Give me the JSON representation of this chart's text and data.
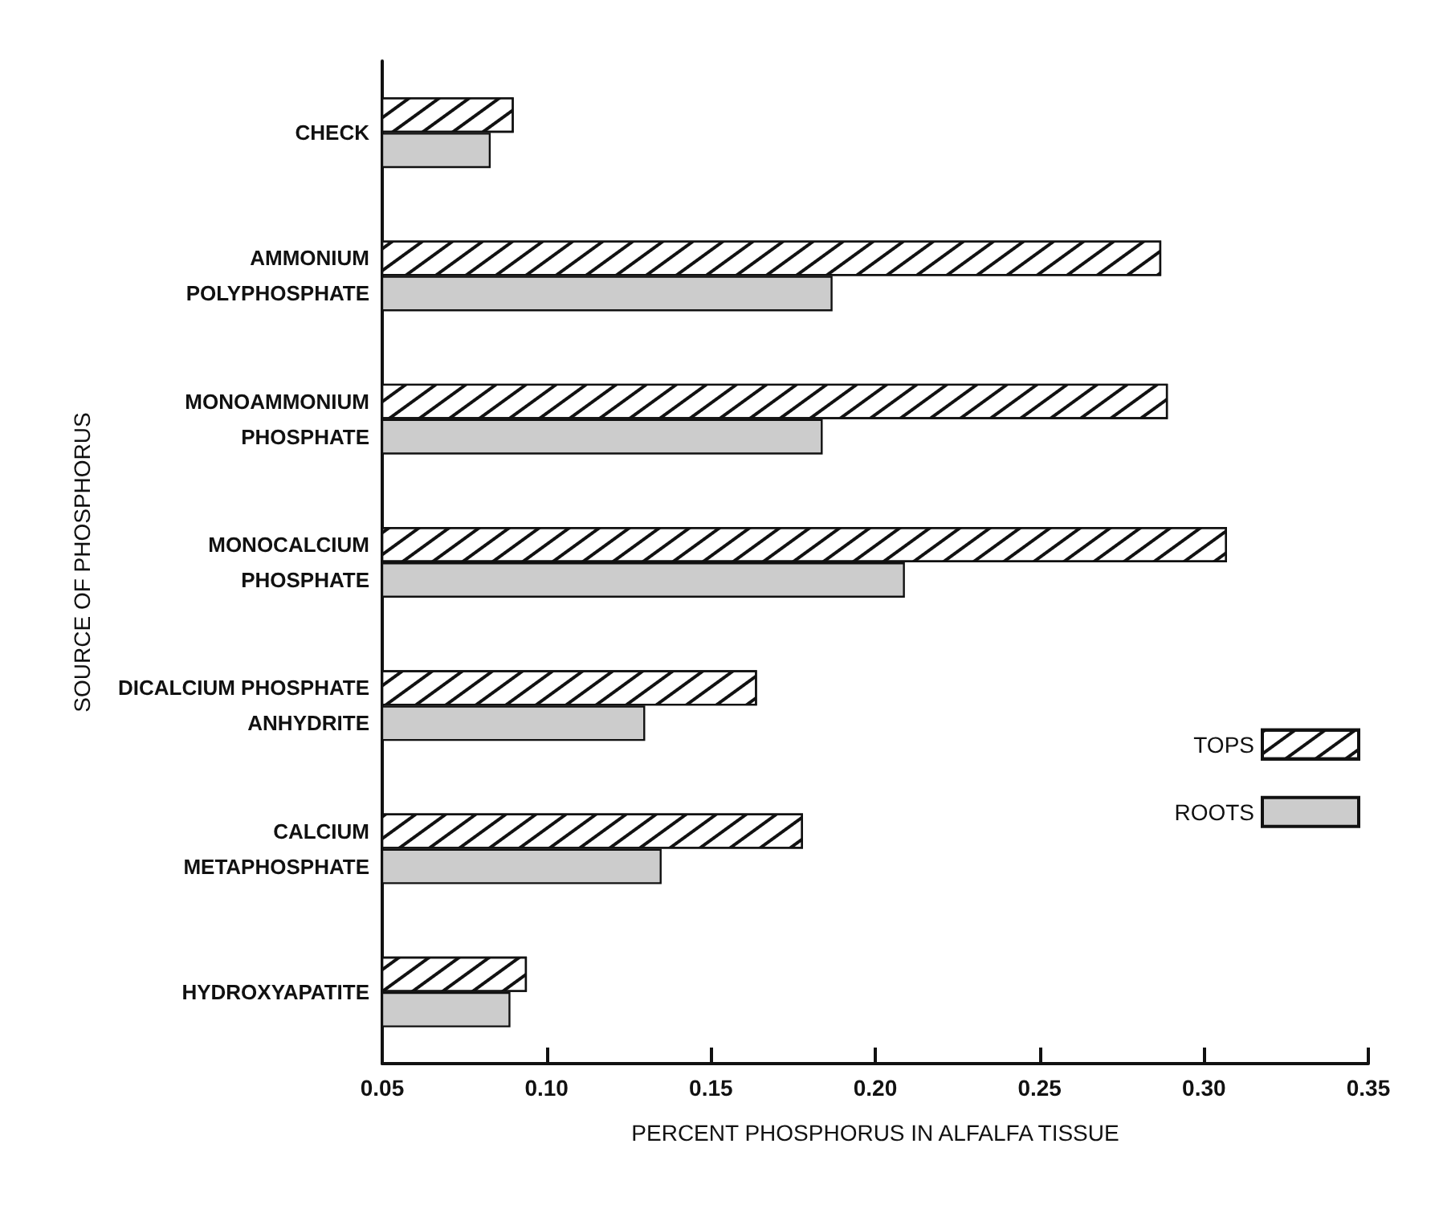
{
  "chart_data": {
    "type": "bar",
    "orientation": "horizontal",
    "xlabel": "PERCENT PHOSPHORUS IN ALFALFA TISSUE",
    "ylabel": "SOURCE OF PHOSPHORUS",
    "categories": [
      "CHECK",
      "AMMONIUM\nPOLYPHOSPHATE",
      "MONOAMMONIUM\nPHOSPHATE",
      "MONOCALCIUM\nPHOSPHATE",
      "DICALCIUM PHOSPHATE\nANHYDRITE",
      "CALCIUM\nMETAPHOSPHATE",
      "HYDROXYAPATITE"
    ],
    "series": [
      {
        "name": "TOPS",
        "color": "#ffffff",
        "values": [
          0.09,
          0.287,
          0.289,
          0.307,
          0.164,
          0.178,
          0.094
        ]
      },
      {
        "name": "ROOTS",
        "color": "#cccccc",
        "values": [
          0.083,
          0.187,
          0.184,
          0.209,
          0.13,
          0.135,
          0.089
        ]
      }
    ],
    "xlim": [
      0.05,
      0.35
    ],
    "xticks": [
      {
        "value": 0.05,
        "label": "0.05"
      },
      {
        "value": 0.1,
        "label": "0.10"
      },
      {
        "value": 0.15,
        "label": "0.15"
      },
      {
        "value": 0.2,
        "label": "0.20"
      },
      {
        "value": 0.25,
        "label": "0.25"
      },
      {
        "value": 0.3,
        "label": "0.30"
      },
      {
        "value": 0.35,
        "label": "0.35"
      }
    ],
    "grid": false,
    "legend": "right"
  }
}
